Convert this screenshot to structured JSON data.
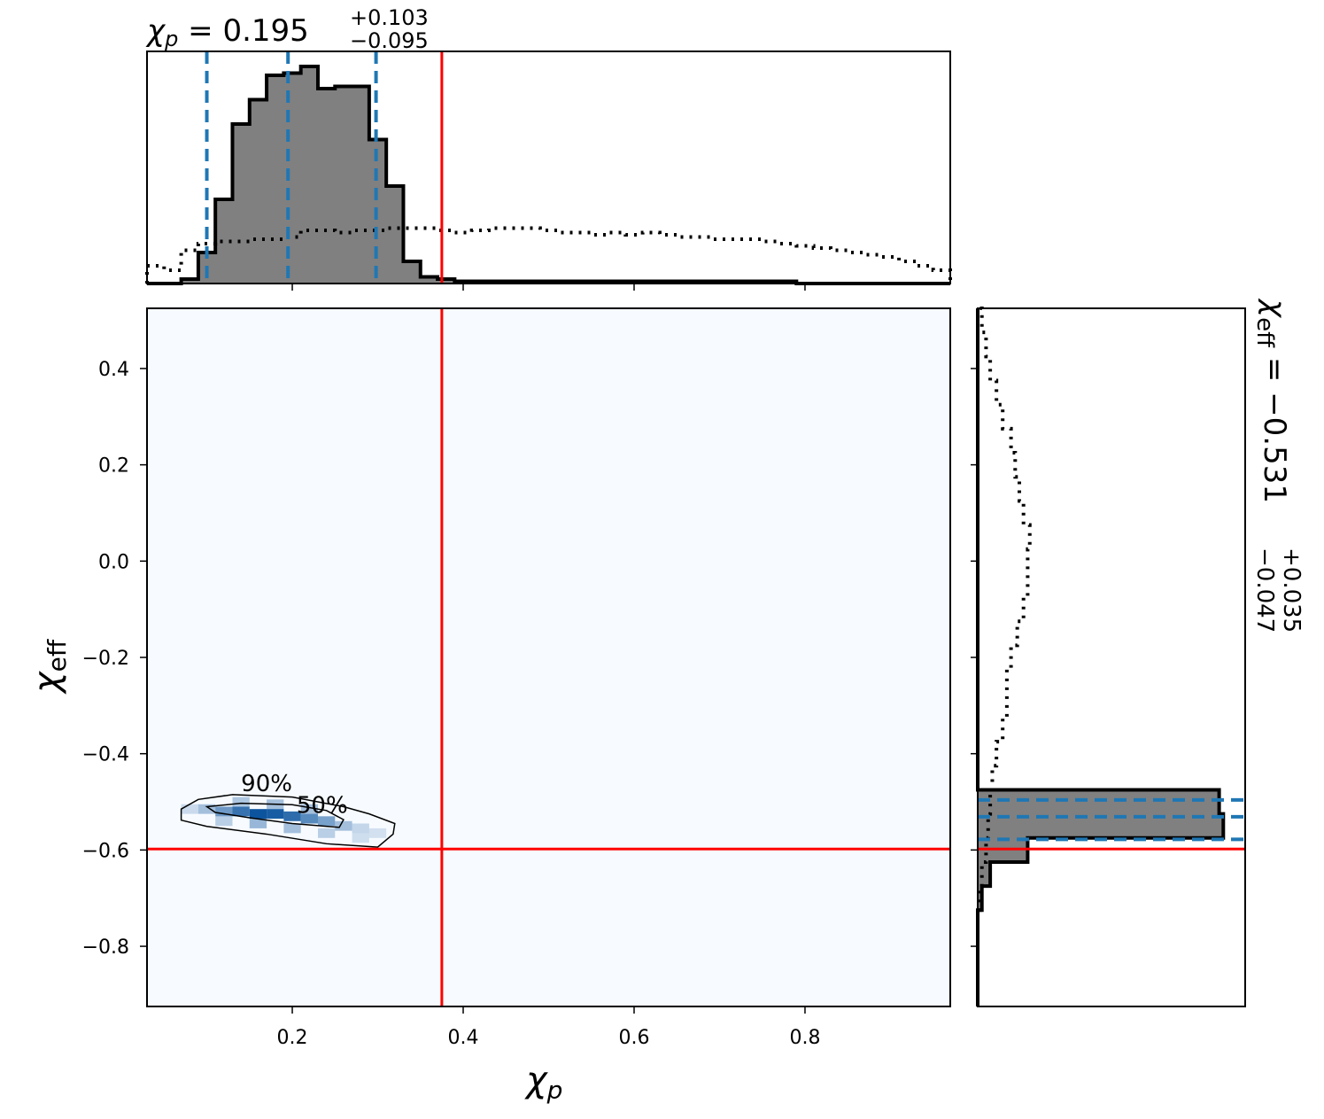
{
  "chart_data": {
    "type": "corner",
    "parameters": [
      {
        "symbol": "χ",
        "subscript": "p",
        "subscript_italic": true
      },
      {
        "symbol": "χ",
        "subscript": "eff",
        "subscript_italic": false
      }
    ],
    "top_histogram": {
      "annotation": {
        "prefix": "χ",
        "sub": "p",
        "equals": " = ",
        "value": "0.195",
        "plus": "+0.103",
        "minus": "−0.095"
      },
      "xlim": [
        0.03,
        0.97
      ],
      "bin_edges": [
        0.03,
        0.05,
        0.07,
        0.09,
        0.11,
        0.13,
        0.15,
        0.17,
        0.19,
        0.21,
        0.23,
        0.25,
        0.27,
        0.29,
        0.31,
        0.33,
        0.35,
        0.37,
        0.39,
        0.41,
        0.43,
        0.45,
        0.47,
        0.49,
        0.51,
        0.53,
        0.55,
        0.57,
        0.59,
        0.61,
        0.63,
        0.65,
        0.67,
        0.69,
        0.71,
        0.73,
        0.75,
        0.77,
        0.79,
        0.81,
        0.83,
        0.85,
        0.87,
        0.89,
        0.91,
        0.93,
        0.95,
        0.97
      ],
      "posterior_density": [
        0.0,
        0.0,
        0.02,
        0.14,
        0.38,
        0.72,
        0.83,
        0.94,
        0.95,
        0.98,
        0.88,
        0.89,
        0.89,
        0.65,
        0.44,
        0.1,
        0.03,
        0.02,
        0.01,
        0.01,
        0.01,
        0.01,
        0.01,
        0.01,
        0.01,
        0.01,
        0.01,
        0.01,
        0.01,
        0.01,
        0.01,
        0.01,
        0.01,
        0.01,
        0.01,
        0.01,
        0.01,
        0.01,
        0.0,
        0.0,
        0.0,
        0.0,
        0.0,
        0.0,
        0.0,
        0.0,
        0.0
      ],
      "prior_density": [
        0.08,
        0.06,
        0.15,
        0.18,
        0.19,
        0.19,
        0.2,
        0.2,
        0.21,
        0.24,
        0.24,
        0.23,
        0.24,
        0.24,
        0.25,
        0.25,
        0.25,
        0.24,
        0.23,
        0.24,
        0.25,
        0.25,
        0.25,
        0.24,
        0.23,
        0.23,
        0.22,
        0.23,
        0.22,
        0.23,
        0.22,
        0.21,
        0.21,
        0.2,
        0.2,
        0.2,
        0.19,
        0.18,
        0.17,
        0.16,
        0.15,
        0.14,
        0.13,
        0.12,
        0.1,
        0.08,
        0.06
      ],
      "quantiles": [
        0.1,
        0.195,
        0.298
      ],
      "truth": 0.375
    },
    "joint": {
      "xlim": [
        0.03,
        0.97
      ],
      "ylim": [
        -0.925,
        0.525
      ],
      "xticks": [
        0.2,
        0.4,
        0.6,
        0.8
      ],
      "xtick_labels": [
        "0.2",
        "0.4",
        "0.6",
        "0.8"
      ],
      "yticks": [
        0.4,
        0.2,
        0.0,
        -0.2,
        -0.4,
        -0.6,
        -0.8
      ],
      "ytick_labels": [
        "0.4",
        "0.2",
        "0.0",
        "−0.2",
        "−0.4",
        "−0.6",
        "−0.8"
      ],
      "truth": {
        "x": 0.375,
        "y": -0.598
      },
      "contours": [
        {
          "label": "90%",
          "label_at": [
            0.17,
            -0.478
          ],
          "points": [
            [
              0.07,
              -0.515
            ],
            [
              0.09,
              -0.495
            ],
            [
              0.13,
              -0.485
            ],
            [
              0.2,
              -0.49
            ],
            [
              0.26,
              -0.51
            ],
            [
              0.29,
              -0.525
            ],
            [
              0.32,
              -0.545
            ],
            [
              0.318,
              -0.567
            ],
            [
              0.3,
              -0.594
            ],
            [
              0.24,
              -0.587
            ],
            [
              0.17,
              -0.567
            ],
            [
              0.1,
              -0.551
            ],
            [
              0.07,
              -0.538
            ]
          ]
        },
        {
          "label": "50%",
          "label_at": [
            0.235,
            -0.523
          ],
          "points": [
            [
              0.1,
              -0.51
            ],
            [
              0.14,
              -0.503
            ],
            [
              0.2,
              -0.506
            ],
            [
              0.24,
              -0.518
            ],
            [
              0.26,
              -0.537
            ],
            [
              0.255,
              -0.553
            ],
            [
              0.2,
              -0.545
            ],
            [
              0.15,
              -0.533
            ],
            [
              0.11,
              -0.522
            ]
          ]
        }
      ],
      "density_cells": [
        {
          "x": 0.08,
          "y": -0.515,
          "d": 0.12
        },
        {
          "x": 0.1,
          "y": -0.515,
          "d": 0.3
        },
        {
          "x": 0.12,
          "y": -0.52,
          "d": 0.55
        },
        {
          "x": 0.14,
          "y": -0.52,
          "d": 0.8
        },
        {
          "x": 0.16,
          "y": -0.525,
          "d": 1.0
        },
        {
          "x": 0.18,
          "y": -0.525,
          "d": 0.95
        },
        {
          "x": 0.2,
          "y": -0.53,
          "d": 0.85
        },
        {
          "x": 0.22,
          "y": -0.535,
          "d": 0.65
        },
        {
          "x": 0.24,
          "y": -0.54,
          "d": 0.5
        },
        {
          "x": 0.26,
          "y": -0.55,
          "d": 0.3
        },
        {
          "x": 0.28,
          "y": -0.555,
          "d": 0.15
        },
        {
          "x": 0.3,
          "y": -0.565,
          "d": 0.08
        },
        {
          "x": 0.14,
          "y": -0.5,
          "d": 0.25
        },
        {
          "x": 0.18,
          "y": -0.505,
          "d": 0.3
        },
        {
          "x": 0.22,
          "y": -0.515,
          "d": 0.3
        },
        {
          "x": 0.12,
          "y": -0.54,
          "d": 0.2
        },
        {
          "x": 0.16,
          "y": -0.545,
          "d": 0.35
        },
        {
          "x": 0.2,
          "y": -0.555,
          "d": 0.3
        },
        {
          "x": 0.24,
          "y": -0.565,
          "d": 0.2
        },
        {
          "x": 0.28,
          "y": -0.575,
          "d": 0.1
        }
      ]
    },
    "right_histogram": {
      "annotation": {
        "prefix": "χ",
        "sub": "eff",
        "equals": " = ",
        "value": "−0.531",
        "plus": "+0.035",
        "minus": "−0.047"
      },
      "ylim": [
        -0.925,
        0.525
      ],
      "bin_edges": [
        -0.925,
        -0.875,
        -0.825,
        -0.775,
        -0.725,
        -0.675,
        -0.625,
        -0.575,
        -0.525,
        -0.475,
        -0.425,
        -0.375,
        -0.325,
        -0.275,
        -0.225,
        -0.175,
        -0.125,
        -0.075,
        -0.025,
        0.025,
        0.075,
        0.125,
        0.175,
        0.225,
        0.275,
        0.325,
        0.375,
        0.425,
        0.475,
        0.525
      ],
      "posterior_density": [
        0.0,
        0.0,
        0.0,
        0.0,
        0.01,
        0.03,
        0.12,
        0.59,
        0.58,
        0.0,
        0.0,
        0.0,
        0.0,
        0.0,
        0.0,
        0.0,
        0.0,
        0.0,
        0.0,
        0.0,
        0.0,
        0.0,
        0.0,
        0.0,
        0.0,
        0.0,
        0.0,
        0.0,
        0.0
      ],
      "prior_density": [
        0.0,
        0.0,
        0.0,
        0.0,
        0.005,
        0.01,
        0.02,
        0.025,
        0.03,
        0.035,
        0.045,
        0.06,
        0.07,
        0.07,
        0.08,
        0.095,
        0.11,
        0.12,
        0.12,
        0.125,
        0.11,
        0.1,
        0.09,
        0.08,
        0.06,
        0.045,
        0.03,
        0.02,
        0.01
      ],
      "quantiles": [
        -0.578,
        -0.531,
        -0.496
      ],
      "truth": -0.598
    },
    "colors": {
      "posterior_fill": "#808080",
      "outline": "#000000",
      "quantile": "#1f77b4",
      "truth": "#ff0000",
      "density": "#08519c",
      "joint_bg": "#f7fbff"
    }
  }
}
